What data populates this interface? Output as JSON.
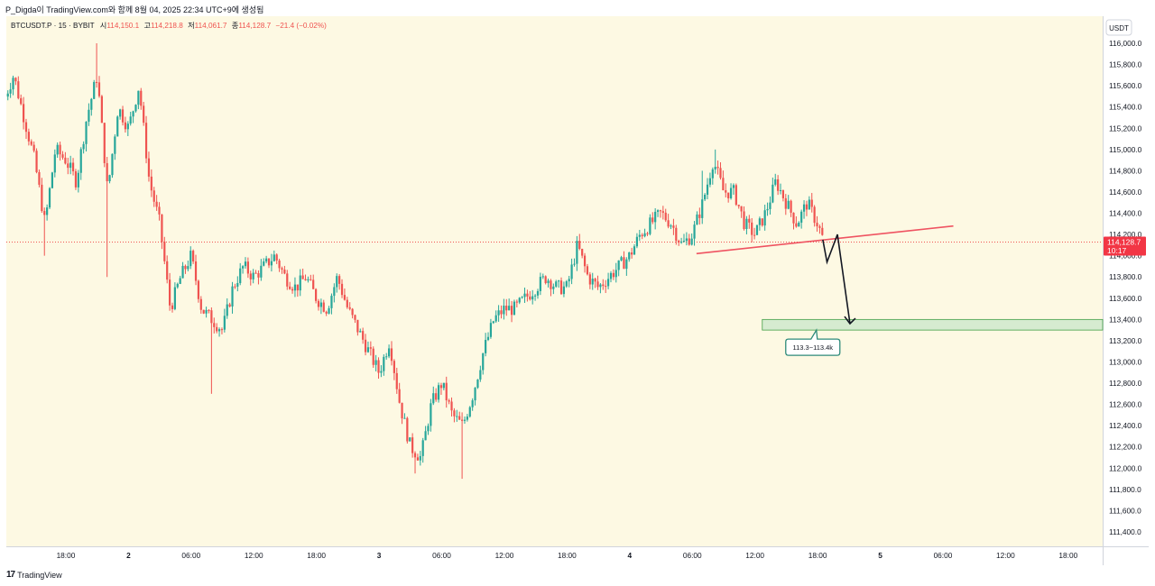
{
  "header": {
    "caption": "P_Digda이 TradingView.com와 함께 8월 04, 2025 22:34 UTC+9에 생성됨"
  },
  "legend": {
    "symbol": "BTCUSDT.P · 15 · BYBIT",
    "open_label": "시",
    "open": "114,150.1",
    "high_label": "고",
    "high": "114,218.8",
    "low_label": "저",
    "low": "114,061.7",
    "close_label": "종",
    "close": "114,128.7",
    "change": "−21.4 (−0.02%)"
  },
  "price_badge": {
    "price": "114,128.7",
    "countdown": "10:17"
  },
  "annotation": {
    "zone_label": "113.3~113.4k"
  },
  "footer": {
    "brand": "TradingView"
  },
  "colors": {
    "background": "#fdf9e3",
    "up": "#26a69a",
    "down": "#ef5350",
    "trendline": "#ef5361",
    "zone_fill": "#c8e6c9",
    "zone_border": "#43a047",
    "badge": "#f23645"
  },
  "chart_data": {
    "type": "candlestick",
    "currency": "USDT",
    "title": "BTCUSDT.P · 15 · BYBIT",
    "ylim": [
      111300,
      116100
    ],
    "y_ticks": [
      116000,
      115800,
      115600,
      115400,
      115200,
      115000,
      114800,
      114600,
      114400,
      114200,
      114000,
      113800,
      113600,
      113400,
      113200,
      113000,
      112800,
      112600,
      112400,
      112200,
      112000,
      111800,
      111600,
      111400
    ],
    "y_tick_labels": [
      "116,000.0",
      "115,800.0",
      "115,600.0",
      "115,400.0",
      "115,200.0",
      "115,000.0",
      "114,800.0",
      "114,600.0",
      "114,400.0",
      "114,200.0",
      "114,000.0",
      "113,800.0",
      "113,600.0",
      "113,400.0",
      "113,200.0",
      "113,000.0",
      "112,800.0",
      "112,600.0",
      "112,400.0",
      "112,200.0",
      "112,000.0",
      "111,800.0",
      "111,600.0",
      "111,400.0"
    ],
    "x_range_hours": [
      12,
      90
    ],
    "x_ticks": [
      {
        "h": 18,
        "label": "18:00",
        "bold": false
      },
      {
        "h": 24,
        "label": "2",
        "bold": true
      },
      {
        "h": 30,
        "label": "06:00",
        "bold": false
      },
      {
        "h": 36,
        "label": "12:00",
        "bold": false
      },
      {
        "h": 42,
        "label": "18:00",
        "bold": false
      },
      {
        "h": 48,
        "label": "3",
        "bold": true
      },
      {
        "h": 54,
        "label": "06:00",
        "bold": false
      },
      {
        "h": 60,
        "label": "12:00",
        "bold": false
      },
      {
        "h": 66,
        "label": "18:00",
        "bold": false
      },
      {
        "h": 72,
        "label": "4",
        "bold": true
      },
      {
        "h": 78,
        "label": "06:00",
        "bold": false
      },
      {
        "h": 84,
        "label": "12:00",
        "bold": false
      },
      {
        "h": 90,
        "label": "18:00",
        "bold": false
      },
      {
        "h": 96,
        "label": "5",
        "bold": true
      },
      {
        "h": 102,
        "label": "06:00",
        "bold": false
      },
      {
        "h": 108,
        "label": "12:00",
        "bold": false
      },
      {
        "h": 114,
        "label": "18:00",
        "bold": false
      }
    ],
    "x_axis_start_hour": 12.3,
    "x_axis_end_hour": 117.3,
    "last_price": 114128.7,
    "path_anchors": [
      [
        12.2,
        115500
      ],
      [
        13.0,
        115700
      ],
      [
        14.0,
        115300
      ],
      [
        15.0,
        114900
      ],
      [
        16.0,
        114300
      ],
      [
        17.0,
        115000
      ],
      [
        18.0,
        114900
      ],
      [
        19.0,
        114700
      ],
      [
        20.0,
        115300
      ],
      [
        21.0,
        115700
      ],
      [
        22.0,
        114600
      ],
      [
        23.0,
        115400
      ],
      [
        24.0,
        115200
      ],
      [
        25.0,
        115600
      ],
      [
        26.0,
        114700
      ],
      [
        27.0,
        114300
      ],
      [
        28.0,
        113500
      ],
      [
        29.0,
        113800
      ],
      [
        30.0,
        114000
      ],
      [
        31.0,
        113500
      ],
      [
        32.0,
        113400
      ],
      [
        33.0,
        113300
      ],
      [
        34.0,
        113700
      ],
      [
        35.0,
        113900
      ],
      [
        36.0,
        113800
      ],
      [
        37.0,
        113900
      ],
      [
        38.0,
        114000
      ],
      [
        39.0,
        113800
      ],
      [
        40.0,
        113700
      ],
      [
        41.0,
        113800
      ],
      [
        42.0,
        113600
      ],
      [
        43.0,
        113500
      ],
      [
        44.0,
        113800
      ],
      [
        45.0,
        113500
      ],
      [
        46.0,
        113300
      ],
      [
        47.0,
        113100
      ],
      [
        48.0,
        112900
      ],
      [
        49.0,
        113200
      ],
      [
        50.0,
        112600
      ],
      [
        51.0,
        112200
      ],
      [
        52.0,
        112100
      ],
      [
        53.0,
        112600
      ],
      [
        54.0,
        112800
      ],
      [
        55.0,
        112500
      ],
      [
        56.0,
        112400
      ],
      [
        57.0,
        112700
      ],
      [
        58.0,
        113100
      ],
      [
        59.0,
        113400
      ],
      [
        60.0,
        113500
      ],
      [
        61.0,
        113500
      ],
      [
        62.0,
        113600
      ],
      [
        63.0,
        113700
      ],
      [
        64.0,
        113800
      ],
      [
        65.0,
        113700
      ],
      [
        66.0,
        113700
      ],
      [
        67.0,
        114100
      ],
      [
        68.0,
        113800
      ],
      [
        69.0,
        113700
      ],
      [
        70.0,
        113800
      ],
      [
        71.0,
        113900
      ],
      [
        72.0,
        114000
      ],
      [
        73.0,
        114200
      ],
      [
        74.0,
        114300
      ],
      [
        75.0,
        114400
      ],
      [
        76.0,
        114300
      ],
      [
        77.0,
        114100
      ],
      [
        78.0,
        114200
      ],
      [
        79.0,
        114500
      ],
      [
        80.0,
        114900
      ],
      [
        81.0,
        114600
      ],
      [
        82.0,
        114600
      ],
      [
        83.0,
        114300
      ],
      [
        84.0,
        114200
      ],
      [
        85.0,
        114400
      ],
      [
        86.0,
        114700
      ],
      [
        87.0,
        114500
      ],
      [
        88.0,
        114300
      ],
      [
        89.0,
        114500
      ],
      [
        90.0,
        114300
      ],
      [
        90.6,
        114130
      ]
    ],
    "spikes": [
      {
        "h": 16.0,
        "low": 114000
      },
      {
        "h": 21.0,
        "high": 116000
      },
      {
        "h": 22.0,
        "low": 113800
      },
      {
        "h": 32.0,
        "low": 112700
      },
      {
        "h": 51.5,
        "low": 111950
      },
      {
        "h": 56.0,
        "low": 111900
      },
      {
        "h": 79.0,
        "high": 114800
      },
      {
        "h": 80.2,
        "high": 115000
      }
    ],
    "trendline": {
      "from": [
        78.4,
        114020
      ],
      "to": [
        103.0,
        114280
      ]
    },
    "projection": [
      [
        90.5,
        114150
      ],
      [
        90.9,
        113940
      ],
      [
        91.9,
        114200
      ],
      [
        93.1,
        113360
      ]
    ],
    "target_zone": {
      "from_hour": 84.7,
      "to_hour": 117.3,
      "low": 113300,
      "high": 113400,
      "label": "113.3~113.4k"
    }
  }
}
